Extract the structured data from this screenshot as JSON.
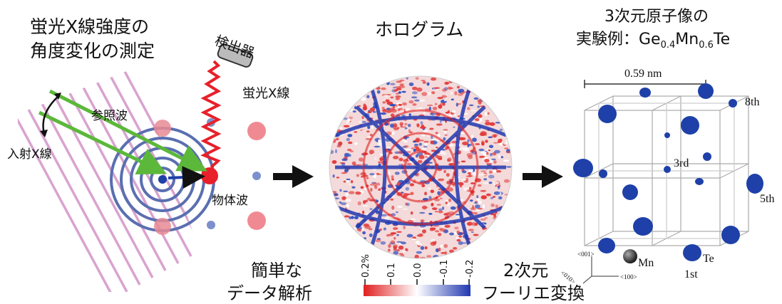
{
  "panel1": {
    "title_line1": "蛍光X線強度の",
    "title_line2": "角度変化の測定",
    "detector_label": "検出器",
    "fluorescent_xray_label": "蛍光X線",
    "reference_wave_label": "参照波",
    "incident_xray_label": "入射X線",
    "object_wave_label": "物体波"
  },
  "panel2": {
    "title": "ホログラム",
    "colorbar_ticks": [
      "0.2%",
      "0.1",
      "0.0",
      "-0.1",
      "-0.2"
    ],
    "analysis_line1": "簡単な",
    "analysis_line2": "データ解析"
  },
  "panel3": {
    "title_line1": "3次元原子像の",
    "title_prefix": "実験例：Ge",
    "sub1": "0.4",
    "mn": "Mn",
    "sub2": "0.6",
    "te": "Te",
    "scale_label": "0.59 nm",
    "label_8th": "8th",
    "label_3rd": "3rd",
    "label_5th": "5th",
    "label_1st": "1st",
    "label_mn": "Mn",
    "label_te": "Te",
    "axis_001": "<001>",
    "axis_010": "<010>",
    "axis_100": "<100>",
    "fourier_line1": "2次元",
    "fourier_line2": "フーリエ変換"
  },
  "colors": {
    "wave_blue": "#5a6fb0",
    "stripe_pink": "#d9a3cf",
    "arrow_green": "#5cb83a",
    "emitter_red": "#e8202a",
    "zigzag_red": "#e8202a",
    "atom_blue": "#1e40a8",
    "colorbar_red": "#e02020",
    "colorbar_blue": "#2038b0"
  }
}
